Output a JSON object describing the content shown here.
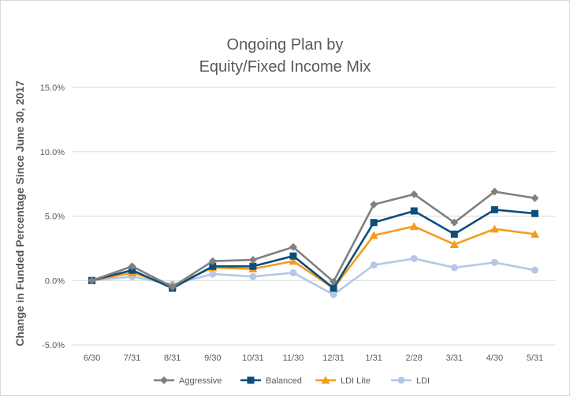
{
  "chart_data": {
    "type": "line",
    "title_line1": "Ongoing Plan by",
    "title_line2": "Equity/Fixed Income Mix",
    "xlabel": "",
    "ylabel": "Change in Funded Percentage Since June 30, 2017",
    "categories": [
      "6/30",
      "7/31",
      "8/31",
      "9/30",
      "10/31",
      "11/30",
      "12/31",
      "1/31",
      "2/28",
      "3/31",
      "4/30",
      "5/31"
    ],
    "yticks": [
      "15.0%",
      "10.0%",
      "5.0%",
      "0.0%",
      "-5.0%"
    ],
    "ylim": [
      -5,
      15
    ],
    "grid": true,
    "legend_position": "bottom",
    "series": [
      {
        "name": "Aggressive",
        "color": "#808080",
        "marker": "diamond",
        "values": [
          0.0,
          1.1,
          -0.5,
          1.5,
          1.6,
          2.6,
          -0.1,
          5.9,
          6.7,
          4.5,
          6.9,
          6.4
        ]
      },
      {
        "name": "Balanced",
        "color": "#0b4e7a",
        "marker": "square",
        "values": [
          0.0,
          0.8,
          -0.6,
          1.1,
          1.1,
          1.9,
          -0.6,
          4.5,
          5.4,
          3.6,
          5.5,
          5.2
        ]
      },
      {
        "name": "LDI Lite",
        "color": "#f39c1f",
        "marker": "triangle",
        "values": [
          0.0,
          0.6,
          -0.4,
          1.0,
          0.9,
          1.5,
          -0.6,
          3.5,
          4.2,
          2.8,
          4.0,
          3.6
        ]
      },
      {
        "name": "LDI",
        "color": "#b4c7e7",
        "marker": "circle",
        "values": [
          0.0,
          0.3,
          -0.3,
          0.5,
          0.3,
          0.6,
          -1.1,
          1.2,
          1.7,
          1.0,
          1.4,
          0.8
        ]
      }
    ]
  }
}
